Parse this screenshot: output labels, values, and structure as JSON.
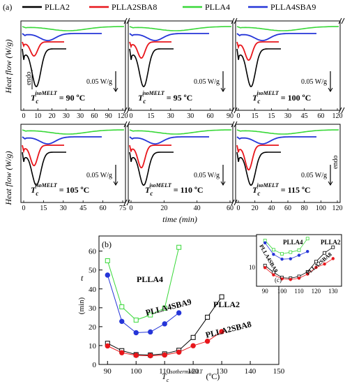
{
  "figure": {
    "panel_a_label": "(a)",
    "panel_b_label": "(b)",
    "panel_c_label": "(c)",
    "y_label_a": "Heat flow (W/g)",
    "x_label_a": "time (min)",
    "endo_label": "endo",
    "scale_label": "0.05 W/g",
    "tc_symbol": "T",
    "tc_subscript": "c",
    "tc_superscript": "isoMELT"
  },
  "legend": [
    {
      "name": "PLLA2",
      "color": "#000000"
    },
    {
      "name": "PLLA2SBA8",
      "color": "#e8161b"
    },
    {
      "name": "PLLA4",
      "color": "#38d838"
    },
    {
      "name": "PLLA4SBA9",
      "color": "#2535d8"
    }
  ],
  "panels_a": [
    {
      "tc_value": "= 90 ºC",
      "left_ticks": [
        "0",
        "10",
        "20",
        "30"
      ],
      "right_ticks": [
        "0",
        "30",
        "60",
        "90",
        "120"
      ],
      "break_marks": true
    },
    {
      "tc_value": "= 95 ºC",
      "left_ticks": [
        "0",
        "15",
        "30"
      ],
      "right_ticks": [
        "0",
        "30",
        "60",
        "90"
      ],
      "break_marks": true
    },
    {
      "tc_value": "= 100 ºC",
      "left_ticks": [
        "0",
        "15"
      ],
      "right_ticks": [
        "0",
        "15",
        "30",
        "45",
        "60",
        "120"
      ],
      "break_marks": true
    },
    {
      "tc_value": "= 105 ºC",
      "left_ticks": [
        "0",
        "15",
        "30",
        "45",
        "60",
        "75"
      ],
      "right_ticks": [],
      "break_marks": true
    },
    {
      "tc_value": "= 110 ºC",
      "left_ticks": [
        "0",
        "20",
        "40",
        "60"
      ],
      "right_ticks": [],
      "break_marks": true
    },
    {
      "tc_value": "= 115 ºC",
      "left_ticks": [
        "0",
        "20",
        "40",
        "60",
        "80",
        "100",
        "120"
      ],
      "right_ticks": [],
      "break_marks": false
    }
  ],
  "chart_data": {
    "type": "scatter",
    "title": "",
    "ylabel": "t (min)",
    "xlabel": "Tc isothermMELT (ºC)",
    "x_ticks": [
      "90",
      "100",
      "110",
      "120",
      "130",
      "140",
      "150"
    ],
    "y_ticks": [
      "0",
      "10",
      "20",
      "30",
      "40",
      "50",
      "60"
    ],
    "xlim": [
      87,
      150
    ],
    "ylim": [
      0,
      68
    ],
    "grid": false,
    "series": [
      {
        "name": "PLLA4",
        "color": "#38d838",
        "marker": "square-open",
        "x": [
          90,
          95,
          100,
          105,
          110,
          115
        ],
        "y": [
          54.9,
          30.5,
          23.5,
          26.2,
          29.8,
          62.0
        ]
      },
      {
        "name": "PLLA4SBA9",
        "color": "#2535d8",
        "marker": "circle-filled",
        "x": [
          90,
          95,
          100,
          105,
          110,
          115
        ],
        "y": [
          47.3,
          22.8,
          16.8,
          17.2,
          21.5,
          27.3
        ]
      },
      {
        "name": "PLLA2",
        "color": "#000000",
        "marker": "square-open",
        "x": [
          90,
          95,
          100,
          105,
          110,
          115,
          120,
          125,
          130
        ],
        "y": [
          11.2,
          7.3,
          5.2,
          5.0,
          5.6,
          7.5,
          14.3,
          25.0,
          35.8
        ]
      },
      {
        "name": "PLLA2SBA8",
        "color": "#e8161b",
        "marker": "circle-filled",
        "x": [
          90,
          95,
          100,
          105,
          110,
          115,
          120,
          125,
          130
        ],
        "y": [
          9.8,
          6.2,
          4.8,
          4.6,
          5.0,
          6.5,
          9.9,
          12.3,
          17.4
        ]
      }
    ],
    "series_labels": [
      "PLLA4",
      "PLLA4SBA9",
      "PLLA2",
      "PLLA2SBA8"
    ],
    "inset": {
      "x_ticks": [
        "90",
        "100",
        "110",
        "120",
        "130"
      ],
      "y_ticks": [
        "10"
      ],
      "labels": [
        "PLLA4",
        "PLLA4SBA9",
        "PLLA2",
        "PLLA2SBA8"
      ]
    }
  }
}
